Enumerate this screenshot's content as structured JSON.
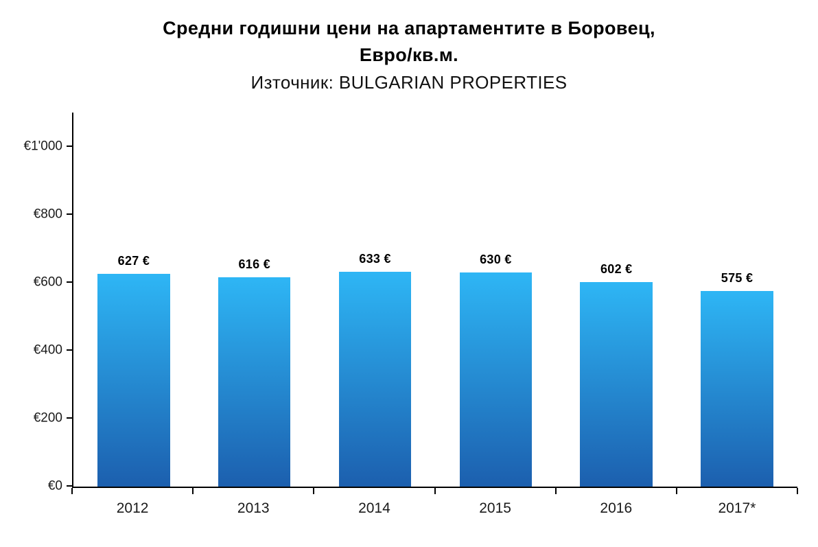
{
  "header": {
    "title_line1": "Средни годишни цени на апартаментите в Боровец,",
    "title_line2": "Евро/кв.м.",
    "subtitle": "Източник: BULGARIAN PROPERTIES"
  },
  "chart_data": {
    "type": "bar",
    "title": "Средни годишни цени на апартаментите в Боровец, Евро/кв.м.",
    "subtitle": "Източник: BULGARIAN PROPERTIES",
    "categories": [
      "2012",
      "2013",
      "2014",
      "2015",
      "2016",
      "2017*"
    ],
    "values": [
      627,
      616,
      633,
      630,
      602,
      575
    ],
    "bar_labels": [
      "627 €",
      "616 €",
      "633 €",
      "630 €",
      "602 €",
      "575 €"
    ],
    "xlabel": "",
    "ylabel": "",
    "ylim": [
      0,
      1100
    ],
    "y_ticks": [
      {
        "value": 0,
        "label": "€0"
      },
      {
        "value": 200,
        "label": "€200"
      },
      {
        "value": 400,
        "label": "€400"
      },
      {
        "value": 600,
        "label": "€600"
      },
      {
        "value": 800,
        "label": "€800"
      },
      {
        "value": 1000,
        "label": "€1'000"
      }
    ],
    "grid": false,
    "legend": false,
    "bar_gradient_top": "#2EB6F5",
    "bar_gradient_bottom": "#1C5FAE",
    "axis_color": "#000000"
  }
}
